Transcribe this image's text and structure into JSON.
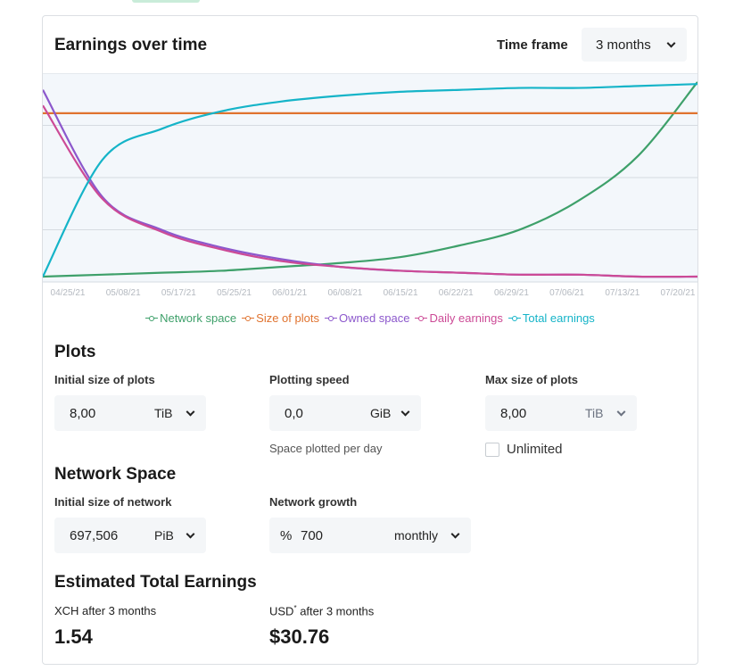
{
  "header": {
    "title": "Earnings over time",
    "time_frame_label": "Time frame",
    "time_frame_value": "3 months"
  },
  "legend": [
    {
      "name": "Network space",
      "color": "#3ea06a"
    },
    {
      "name": "Size of plots",
      "color": "#e0732f"
    },
    {
      "name": "Owned space",
      "color": "#8c58cc"
    },
    {
      "name": "Daily earnings",
      "color": "#cc4a96"
    },
    {
      "name": "Total earnings",
      "color": "#15b4c8"
    }
  ],
  "chart_data": {
    "type": "line",
    "x_labels": [
      "04/25/21",
      "05/08/21",
      "05/17/21",
      "05/25/21",
      "06/01/21",
      "06/08/21",
      "06/15/21",
      "06/22/21",
      "06/29/21",
      "07/06/21",
      "07/13/21",
      "07/20/21"
    ],
    "grid": true,
    "legend_position": "bottom",
    "series": [
      {
        "name": "Network space",
        "color": "#3ea06a",
        "values": [
          0.0,
          0.01,
          0.02,
          0.03,
          0.05,
          0.07,
          0.1,
          0.16,
          0.24,
          0.39,
          0.62,
          1.0
        ]
      },
      {
        "name": "Size of plots",
        "color": "#e0732f",
        "values": [
          0.84,
          0.84,
          0.84,
          0.84,
          0.84,
          0.84,
          0.84,
          0.84,
          0.84,
          0.84,
          0.84,
          0.84
        ]
      },
      {
        "name": "Owned space",
        "color": "#8c58cc",
        "values": [
          0.96,
          0.41,
          0.24,
          0.15,
          0.09,
          0.05,
          0.03,
          0.02,
          0.01,
          0.01,
          0.0,
          0.0
        ]
      },
      {
        "name": "Daily earnings",
        "color": "#cc4a96",
        "values": [
          0.88,
          0.4,
          0.23,
          0.14,
          0.08,
          0.05,
          0.03,
          0.02,
          0.01,
          0.01,
          0.0,
          0.0
        ]
      },
      {
        "name": "Total earnings",
        "color": "#15b4c8",
        "values": [
          0.0,
          0.6,
          0.76,
          0.85,
          0.9,
          0.93,
          0.95,
          0.96,
          0.97,
          0.97,
          0.98,
          0.99
        ]
      }
    ]
  },
  "plots": {
    "title": "Plots",
    "initial_size_label": "Initial size of plots",
    "initial_size_value": "8,00",
    "initial_size_unit": "TiB",
    "plotting_speed_label": "Plotting speed",
    "plotting_speed_value": "0,0",
    "plotting_speed_unit": "GiB",
    "plotting_speed_hint": "Space plotted per day",
    "max_size_label": "Max size of plots",
    "max_size_value": "8,00",
    "max_size_unit": "TiB",
    "unlimited_label": "Unlimited"
  },
  "network": {
    "title": "Network Space",
    "initial_size_label": "Initial size of network",
    "initial_size_value": "697,506",
    "initial_size_unit": "PiB",
    "growth_label": "Network growth",
    "growth_prefix": "%",
    "growth_value": "700",
    "growth_period": "monthly"
  },
  "earnings": {
    "title": "Estimated Total Earnings",
    "xch_label": "XCH after 3 months",
    "xch_value": "1.54",
    "usd_label": "USD",
    "usd_marker": "*",
    "usd_label_suffix": " after 3 months",
    "usd_value": "$30.76"
  }
}
